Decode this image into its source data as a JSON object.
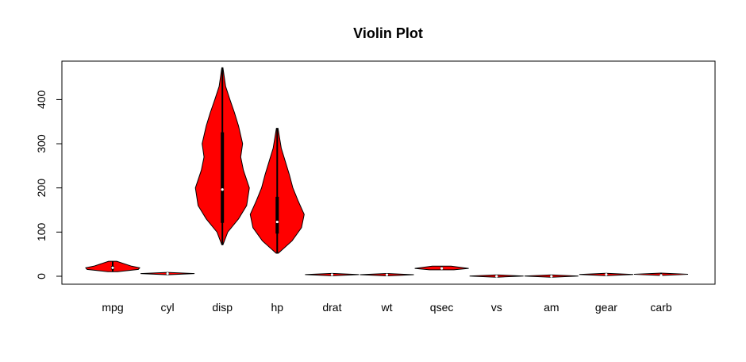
{
  "chart_data": {
    "type": "violin",
    "title": "Violin Plot",
    "xlabel": "",
    "ylabel": "",
    "ylim": [
      -18,
      487
    ],
    "yticks": [
      0,
      100,
      200,
      300,
      400
    ],
    "grid": false,
    "legend": "none",
    "colors": {
      "fill": "#ff0000",
      "outline": "#000000",
      "median": "#ffffff",
      "background": "#ffffff"
    },
    "series": [
      {
        "name": "mpg",
        "min": 10.4,
        "q1": 15.4,
        "median": 19.2,
        "q3": 22.8,
        "max": 33.9,
        "density_y": [
          10.4,
          15.4,
          19.2,
          22.8,
          33.9
        ],
        "density_w": [
          0.18,
          0.95,
          1.0,
          0.7,
          0.15
        ]
      },
      {
        "name": "cyl",
        "min": 4,
        "q1": 4,
        "median": 6,
        "q3": 8,
        "max": 8,
        "density_y": [
          4,
          6,
          8
        ],
        "density_w": [
          0.85,
          0.55,
          1.0
        ]
      },
      {
        "name": "disp",
        "min": 71.1,
        "q1": 120.8,
        "median": 196.3,
        "q3": 326,
        "max": 472,
        "density_y": [
          71.1,
          100,
          130,
          160,
          200,
          240,
          270,
          300,
          340,
          370,
          400,
          430,
          472
        ],
        "density_w": [
          0.02,
          0.2,
          0.6,
          0.9,
          1.0,
          0.78,
          0.68,
          0.75,
          0.6,
          0.45,
          0.28,
          0.12,
          0.02
        ]
      },
      {
        "name": "hp",
        "min": 52,
        "q1": 96.5,
        "median": 123,
        "q3": 180,
        "max": 335,
        "density_y": [
          52,
          80,
          110,
          140,
          170,
          200,
          230,
          260,
          290,
          335
        ],
        "density_w": [
          0.04,
          0.55,
          0.9,
          1.0,
          0.78,
          0.58,
          0.45,
          0.3,
          0.15,
          0.03
        ]
      },
      {
        "name": "drat",
        "min": 2.76,
        "q1": 3.08,
        "median": 3.695,
        "q3": 3.92,
        "max": 4.93,
        "density_y": [
          2.76,
          3.7,
          4.93
        ],
        "density_w": [
          0.7,
          1.0,
          0.6
        ]
      },
      {
        "name": "wt",
        "min": 1.513,
        "q1": 2.581,
        "median": 3.325,
        "q3": 3.61,
        "max": 5.424,
        "density_y": [
          1.513,
          3.3,
          5.424
        ],
        "density_w": [
          0.5,
          1.0,
          0.4
        ]
      },
      {
        "name": "qsec",
        "min": 14.5,
        "q1": 16.89,
        "median": 17.71,
        "q3": 18.9,
        "max": 22.9,
        "density_y": [
          14.5,
          17.7,
          22.9
        ],
        "density_w": [
          0.45,
          1.0,
          0.35
        ]
      },
      {
        "name": "vs",
        "min": 0,
        "q1": 0,
        "median": 0,
        "q3": 1,
        "max": 1,
        "density_y": [
          0,
          1
        ],
        "density_w": [
          1.0,
          0.9
        ]
      },
      {
        "name": "am",
        "min": 0,
        "q1": 0,
        "median": 0,
        "q3": 1,
        "max": 1,
        "density_y": [
          0,
          1
        ],
        "density_w": [
          1.0,
          0.85
        ]
      },
      {
        "name": "gear",
        "min": 3,
        "q1": 3,
        "median": 4,
        "q3": 4,
        "max": 5,
        "density_y": [
          3,
          4,
          5
        ],
        "density_w": [
          1.0,
          0.85,
          0.5
        ]
      },
      {
        "name": "carb",
        "min": 1,
        "q1": 2,
        "median": 2,
        "q3": 4,
        "max": 8,
        "density_y": [
          1,
          2,
          4,
          6,
          8
        ],
        "density_w": [
          0.7,
          1.0,
          0.85,
          0.3,
          0.15
        ]
      }
    ]
  }
}
